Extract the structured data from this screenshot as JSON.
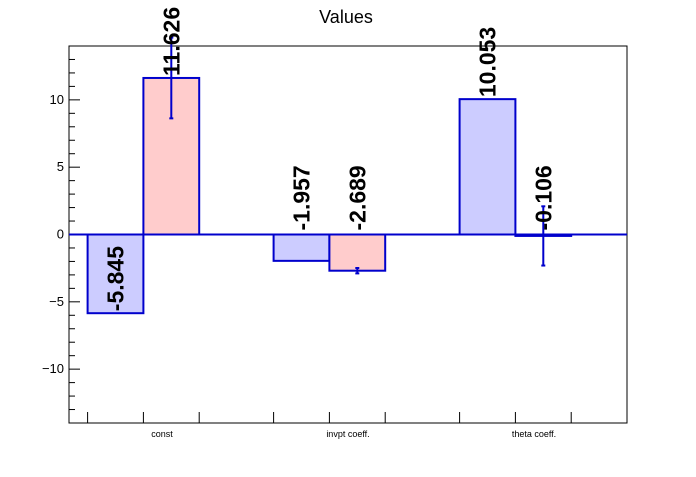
{
  "chart_data": {
    "type": "bar",
    "title": "Values",
    "xlabel": "",
    "ylabel": "",
    "categories": [
      "const",
      "invpt coeff.",
      "theta coeff."
    ],
    "ylim": [
      -14,
      14
    ],
    "yticks": [
      -10,
      -5,
      0,
      5,
      10
    ],
    "ytick_labels": [
      "−10",
      "−5",
      "0",
      "5",
      "10"
    ],
    "grid": false,
    "series": [
      {
        "color": "#ccccff",
        "values": [
          -5.845,
          -1.957,
          10.053
        ],
        "errors": [
          0,
          0,
          0
        ],
        "labels": [
          "-5.845",
          "-1.957",
          "10.053"
        ]
      },
      {
        "color": "#ffcccc",
        "values": [
          11.626,
          -2.689,
          -0.106
        ],
        "errors": [
          3.0,
          0.2,
          2.2
        ],
        "labels": [
          "11.626",
          "-2.689",
          "-0.106"
        ]
      }
    ],
    "bar_edge_color": "#0000cc"
  }
}
